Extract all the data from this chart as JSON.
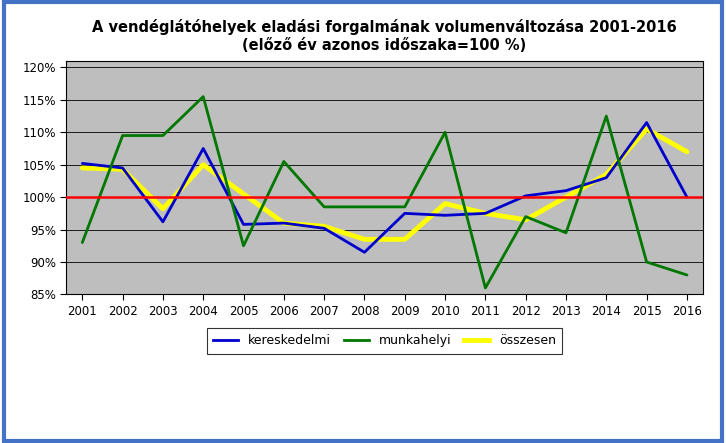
{
  "title_line1": "A vendéglátóhelyek eladási forgalmának volumenváltozása 2001-2016",
  "title_line2": "(előző év azonos időszaka=100 %)",
  "years": [
    2001,
    2002,
    2003,
    2004,
    2005,
    2006,
    2007,
    2008,
    2009,
    2010,
    2011,
    2012,
    2013,
    2014,
    2015,
    2016
  ],
  "kereskedelmi": [
    105.2,
    104.5,
    96.2,
    107.5,
    95.8,
    96.0,
    95.2,
    91.5,
    97.5,
    97.2,
    97.5,
    100.2,
    101.0,
    103.0,
    111.5,
    100.0
  ],
  "munkahelyi": [
    93.0,
    109.5,
    109.5,
    115.5,
    92.5,
    105.5,
    98.5,
    98.5,
    98.5,
    110.0,
    86.0,
    97.0,
    94.5,
    112.5,
    90.0,
    88.0
  ],
  "osszesen": [
    104.5,
    104.3,
    98.2,
    105.0,
    100.5,
    96.0,
    95.5,
    93.5,
    93.5,
    99.0,
    97.5,
    96.5,
    100.0,
    103.5,
    110.5,
    107.0
  ],
  "kereskedelmi_color": "#0000CC",
  "munkahelyi_color": "#007700",
  "osszesen_color": "#FFFF00",
  "reference_color": "#FF0000",
  "plot_background_color": "#BEBEBE",
  "outer_background": "#FFFFFF",
  "border_color": "#4472C4",
  "ylim_min": 85,
  "ylim_max": 121,
  "yticks": [
    85,
    90,
    95,
    100,
    105,
    110,
    115,
    120
  ],
  "legend_labels": [
    "kereskedelmi",
    "munkahelyi",
    "összesen"
  ],
  "kereskedelmi_lw": 2.0,
  "munkahelyi_lw": 2.0,
  "osszesen_lw": 3.5,
  "ref_lw": 1.8,
  "title_fontsize": 10.5,
  "tick_fontsize": 8.5
}
